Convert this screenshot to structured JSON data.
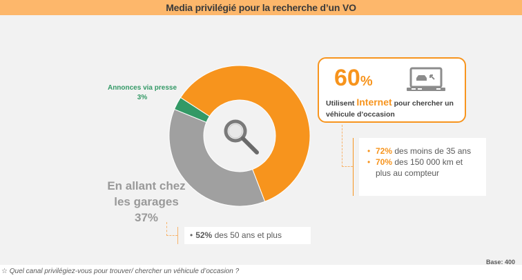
{
  "title": "Media privilégié pour la recherche d’un VO",
  "chart_data": {
    "type": "pie",
    "variant": "donut",
    "title": "Media privilégié pour la recherche d’un VO",
    "categories": [
      "Internet",
      "En allant chez les garages",
      "Annonces via presse"
    ],
    "values": [
      60,
      37,
      3
    ],
    "unit": "%",
    "colors": [
      "#f7941d",
      "#a0a0a0",
      "#339966"
    ],
    "center_icon": "magnifier-icon"
  },
  "labels": {
    "presse_name": "Annonces via presse",
    "presse_pct": "3%",
    "garage_line1": "En allant chez",
    "garage_line2": "les garages",
    "garage_pct": "37%"
  },
  "internet_box": {
    "pct_number": "60",
    "pct_sign": "%",
    "icon": "laptop-car-icon",
    "text_before": "Utilisent ",
    "text_highlight": "Internet",
    "text_after": " pour chercher un véhicule d’occasion"
  },
  "internet_details": [
    {
      "pct": "72%",
      "text": " des moins de 35 ans"
    },
    {
      "pct": "70%",
      "text": " des 150 000 km et plus au compteur"
    }
  ],
  "garage_details": {
    "pct": "52%",
    "text": " des 50 ans et plus"
  },
  "base": "Base: 400",
  "question": "Quel canal privilégiez-vous pour trouver/ chercher un véhicule d’occasion ?",
  "question_icon": "star-icon"
}
